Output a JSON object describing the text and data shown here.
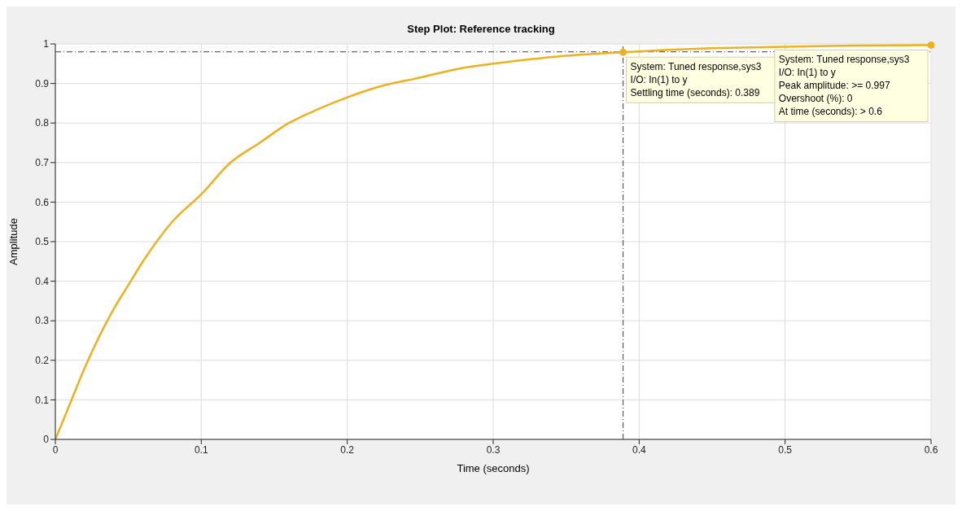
{
  "chart_data": {
    "type": "line",
    "title": "Step Plot: Reference tracking",
    "xlabel": "Time (seconds)",
    "ylabel": "Amplitude",
    "x": [
      0,
      0.01,
      0.02,
      0.03,
      0.04,
      0.05,
      0.06,
      0.08,
      0.1,
      0.12,
      0.14,
      0.16,
      0.18,
      0.2,
      0.22,
      0.25,
      0.28,
      0.3,
      0.33,
      0.35,
      0.389,
      0.42,
      0.45,
      0.5,
      0.55,
      0.6
    ],
    "series": [
      {
        "color": "#edb120",
        "values": [
          0,
          0.09,
          0.18,
          0.26,
          0.33,
          0.39,
          0.45,
          0.55,
          0.62,
          0.7,
          0.75,
          0.8,
          0.835,
          0.865,
          0.89,
          0.915,
          0.94,
          0.95,
          0.963,
          0.97,
          0.979,
          0.985,
          0.989,
          0.993,
          0.996,
          0.997
        ]
      }
    ],
    "xlim": [
      0,
      0.6
    ],
    "ylim": [
      0,
      1
    ],
    "xticks": [
      0,
      0.1,
      0.2,
      0.3,
      0.4,
      0.5,
      0.6
    ],
    "yticks": [
      0,
      0.1,
      0.2,
      0.3,
      0.4,
      0.5,
      0.6,
      0.7,
      0.8,
      0.9,
      1
    ],
    "grid": true,
    "marker": "none",
    "line_style": "solid",
    "ref_lines": [
      {
        "axis": "y",
        "value": 0.98,
        "color": "#404040",
        "line_style": "dashdot"
      },
      {
        "axis": "x",
        "value": 0.389,
        "color": "#404040",
        "line_style": "dashdot"
      }
    ],
    "annotations": [
      {
        "text": "System: Tuned response,sys3\nI/O: In(1) to y\nSettling time (seconds): 0.389",
        "x": 0.389,
        "y": 0.979
      },
      {
        "text": "System: Tuned response,sys3\nI/O: In(1) to y\nPeak amplitude: >= 0.997\nOvershoot (%): 0\nAt time (seconds): > 0.6",
        "x": 0.6,
        "y": 0.997
      }
    ]
  }
}
